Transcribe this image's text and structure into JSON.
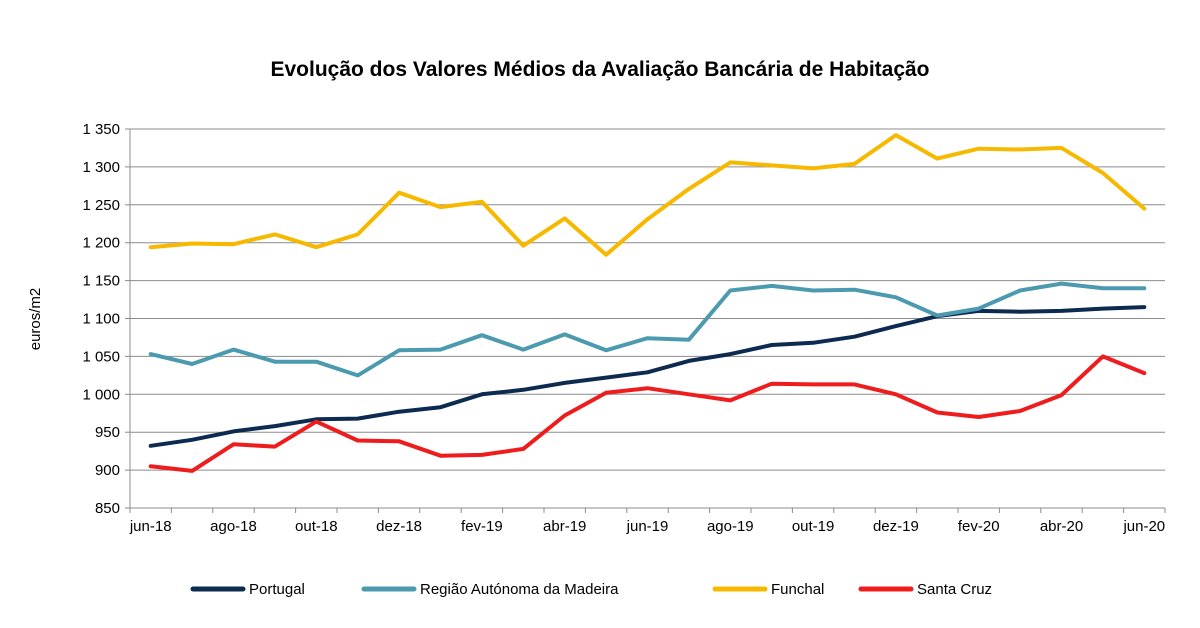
{
  "chart_data": {
    "type": "line",
    "title": "Evolução dos Valores Médios da Avaliação Bancária de Habitação",
    "ylabel": "euros/m2",
    "xlabel": "",
    "ylim": [
      850,
      1350
    ],
    "yticks": [
      "850",
      "900",
      "950",
      "1 000",
      "1 050",
      "1 100",
      "1 150",
      "1 200",
      "1 250",
      "1 300",
      "1 350"
    ],
    "xtick_labels": [
      "jun-18",
      "ago-18",
      "out-18",
      "dez-18",
      "fev-19",
      "abr-19",
      "jun-19",
      "ago-19",
      "out-19",
      "dez-19",
      "fev-20",
      "abr-20",
      "jun-20"
    ],
    "categories": [
      "jun-18",
      "jul-18",
      "ago-18",
      "set-18",
      "out-18",
      "nov-18",
      "dez-18",
      "jan-19",
      "fev-19",
      "mar-19",
      "abr-19",
      "mai-19",
      "jun-19",
      "jul-19",
      "ago-19",
      "set-19",
      "out-19",
      "nov-19",
      "dez-19",
      "jan-20",
      "fev-20",
      "mar-20",
      "abr-20",
      "mai-20",
      "jun-20"
    ],
    "grid": true,
    "legend_position": "bottom",
    "series": [
      {
        "name": "Portugal",
        "color": "#0d2b50",
        "values": [
          932,
          940,
          951,
          958,
          967,
          968,
          977,
          983,
          1000,
          1006,
          1015,
          1022,
          1029,
          1044,
          1053,
          1065,
          1068,
          1076,
          1090,
          1103,
          1110,
          1109,
          1110,
          1113,
          1115
        ]
      },
      {
        "name": "Região Autónoma da Madeira",
        "color": "#4b9ab0",
        "values": [
          1053,
          1040,
          1059,
          1043,
          1043,
          1025,
          1058,
          1059,
          1078,
          1059,
          1079,
          1058,
          1074,
          1072,
          1137,
          1143,
          1137,
          1138,
          1128,
          1104,
          1113,
          1137,
          1146,
          1140,
          1140
        ]
      },
      {
        "name": "Funchal",
        "color": "#f7b800",
        "values": [
          1194,
          1199,
          1198,
          1211,
          1194,
          1211,
          1266,
          1247,
          1254,
          1196,
          1232,
          1184,
          1231,
          1271,
          1306,
          1302,
          1298,
          1304,
          1342,
          1311,
          1324,
          1323,
          1325,
          1292,
          1245
        ]
      },
      {
        "name": "Santa Cruz",
        "color": "#ee1c1c",
        "values": [
          905,
          899,
          934,
          931,
          964,
          939,
          938,
          919,
          920,
          928,
          972,
          1002,
          1008,
          1000,
          992,
          1014,
          1013,
          1013,
          1000,
          976,
          970,
          978,
          999,
          1050,
          1028
        ]
      }
    ]
  }
}
